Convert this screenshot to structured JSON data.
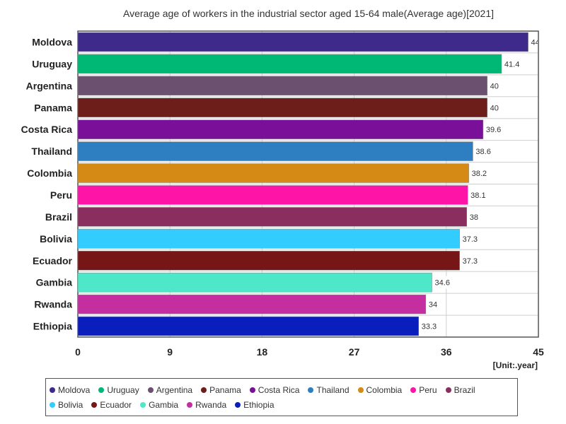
{
  "chart_data": {
    "type": "bar",
    "orientation": "horizontal",
    "title": "Average age of workers in the industrial sector aged 15-64 male(Average age)[2021]",
    "unit_label": "[Unit:.year]",
    "categories": [
      "Moldova",
      "Uruguay",
      "Argentina",
      "Panama",
      "Costa Rica",
      "Thailand",
      "Colombia",
      "Peru",
      "Brazil",
      "Bolivia",
      "Ecuador",
      "Gambia",
      "Rwanda",
      "Ethiopia"
    ],
    "values": [
      44,
      41.4,
      40,
      40,
      39.6,
      38.6,
      38.2,
      38.1,
      38,
      37.3,
      37.3,
      34.6,
      34,
      33.3
    ],
    "data_labels": [
      "44",
      "41.4",
      "40",
      "40",
      "39.6",
      "38.6",
      "38.2",
      "38.1",
      "38",
      "37.3",
      "37.3",
      "34.6",
      "34",
      "33.3"
    ],
    "colors": [
      "#3d2a8a",
      "#00b875",
      "#6b5070",
      "#6e1e1a",
      "#7a0f9a",
      "#2e7ec2",
      "#d48a14",
      "#ff14a8",
      "#8a2e60",
      "#33ccff",
      "#761616",
      "#4ee8c8",
      "#c42ea0",
      "#0a1ebe"
    ],
    "xlim": [
      0,
      45
    ],
    "x_ticks": [
      "0",
      "9",
      "18",
      "27",
      "36",
      "45"
    ],
    "x_tick_values": [
      0,
      9,
      18,
      27,
      36,
      45
    ],
    "grid": true,
    "legend_placement": "bottom"
  }
}
